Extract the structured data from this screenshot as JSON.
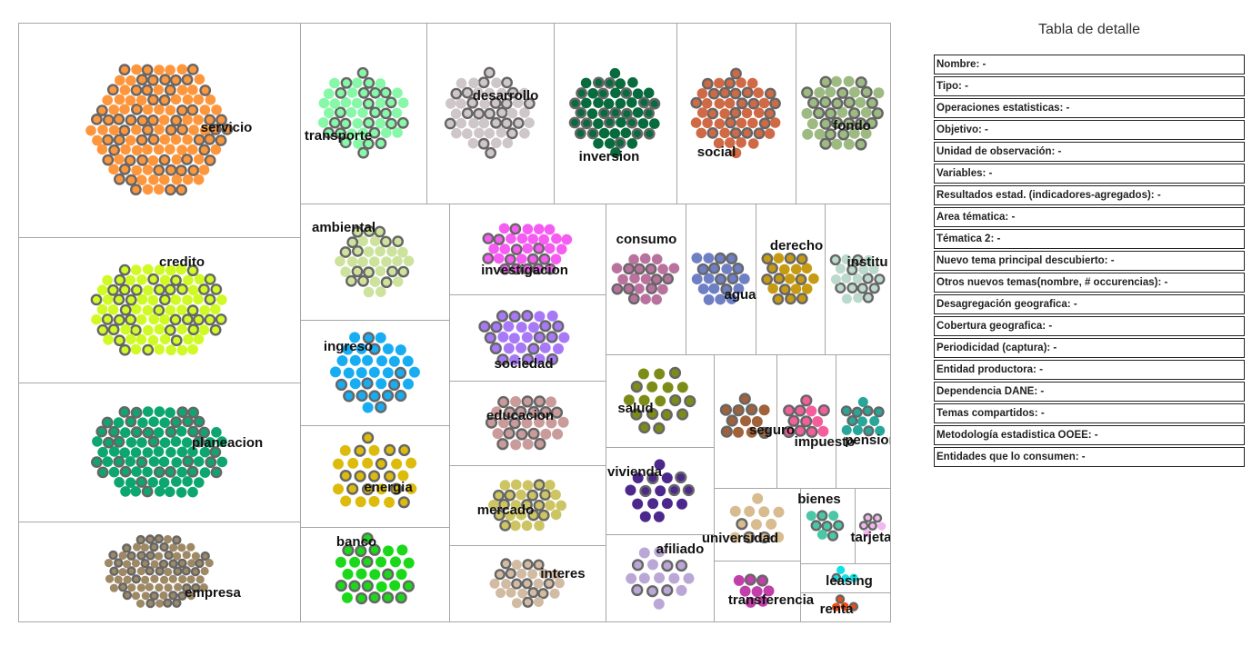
{
  "chart_data": {
    "type": "treemap",
    "title": "",
    "cells": [
      {
        "label": "servicio",
        "count": 125,
        "color": "#fd963c"
      },
      {
        "label": "credito",
        "count": 90,
        "color": "#d0fa25"
      },
      {
        "label": "planeacion",
        "count": 88,
        "color": "#0ea670"
      },
      {
        "label": "empresa",
        "count": 82,
        "color": "#9e8966"
      },
      {
        "label": "transporte",
        "count": 48,
        "color": "#87f7a8"
      },
      {
        "label": "desarrollo",
        "count": 48,
        "color": "#cfc6c9"
      },
      {
        "label": "inversion",
        "count": 48,
        "color": "#086b3d"
      },
      {
        "label": "social",
        "count": 48,
        "color": "#cf6a47"
      },
      {
        "label": "fondo",
        "count": 40,
        "color": "#9dba82"
      },
      {
        "label": "ambiental",
        "count": 34,
        "color": "#cde39d"
      },
      {
        "label": "ingreso",
        "count": 34,
        "color": "#18adf2"
      },
      {
        "label": "energia",
        "count": 28,
        "color": "#dcbb0c"
      },
      {
        "label": "banco",
        "count": 28,
        "color": "#1bd81b"
      },
      {
        "label": "investigacion",
        "count": 32,
        "color": "#f55cf1"
      },
      {
        "label": "sociedad",
        "count": 30,
        "color": "#a879f6"
      },
      {
        "label": "educacion",
        "count": 28,
        "color": "#c99b9b"
      },
      {
        "label": "mercado",
        "count": 28,
        "color": "#cdc563"
      },
      {
        "label": "interes",
        "count": 26,
        "color": "#d1bba3"
      },
      {
        "label": "consumo",
        "count": 22,
        "color": "#b8729d"
      },
      {
        "label": "agua",
        "count": 20,
        "color": "#6e7fc4"
      },
      {
        "label": "derecho",
        "count": 20,
        "color": "#c79a13"
      },
      {
        "label": "institu",
        "count": 20,
        "color": "#bcd9cd"
      },
      {
        "label": "salud",
        "count": 18,
        "color": "#7d8c18"
      },
      {
        "label": "vivienda",
        "count": 16,
        "color": "#4c288c"
      },
      {
        "label": "seguro",
        "count": 12,
        "color": "#a0623a"
      },
      {
        "label": "impuesto",
        "count": 12,
        "color": "#f45f9b"
      },
      {
        "label": "pension",
        "count": 12,
        "color": "#27a699"
      },
      {
        "label": "afiliado",
        "count": 16,
        "color": "#bba7d6"
      },
      {
        "label": "universidad",
        "count": 12,
        "color": "#d8bb8e"
      },
      {
        "label": "bienes",
        "count": 8,
        "color": "#4ac7a6"
      },
      {
        "label": "tarjeta",
        "count": 6,
        "color": "#f1b8ee"
      },
      {
        "label": "transferencia",
        "count": 8,
        "color": "#c03fa9"
      },
      {
        "label": "leasing",
        "count": 4,
        "color": "#11e1e4"
      },
      {
        "label": "renta",
        "count": 4,
        "color": "#ec4d17"
      }
    ]
  },
  "detail": {
    "title": "Tabla de detalle",
    "rows": [
      "Nombre: -",
      "Tipo: -",
      "Operaciones estatisticas: -",
      "Objetivo: -",
      "Unidad de observación: -",
      "Variables: -",
      "Resultados estad. (indicadores-agregados): -",
      "Area tématica: -",
      "Tématica 2: -",
      "Nuevo tema principal descubierto: -",
      "Otros nuevos temas(nombre, # occurencias): -",
      "Desagregación geografica: -",
      "Cobertura geografica: -",
      "Periodicidad (captura): -",
      "Entidad productora: -",
      "Dependencia DANE: -",
      "Temas compartidos: -",
      "Metodología estadistica OOEE: -",
      "Entidades que lo consumen: -"
    ]
  }
}
